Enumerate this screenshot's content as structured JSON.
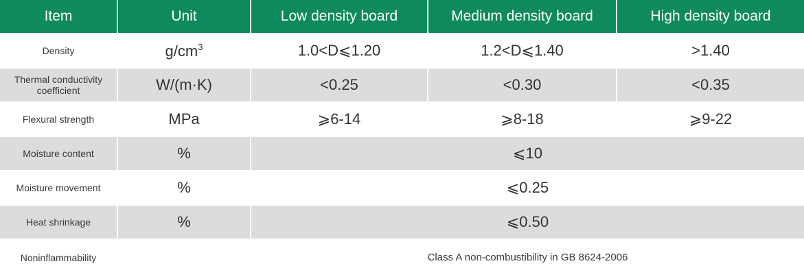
{
  "header": {
    "item": "Item",
    "unit": "Unit",
    "low": "Low density board",
    "medium": "Medium density board",
    "high": "High density board"
  },
  "rows": [
    {
      "item": "Density",
      "unit_base": "g/cm",
      "unit_sup": "3",
      "low": "1.0<D⩽1.20",
      "medium": "1.2<D⩽1.40",
      "high": ">1.40"
    },
    {
      "item_line1": "Thermal conductivity",
      "item_line2": "coefficient",
      "unit": "W/(m·K)",
      "low": "<0.25",
      "medium": "<0.30",
      "high": "<0.35"
    },
    {
      "item": "Flexural strength",
      "unit": "MPa",
      "low": "⩾6-14",
      "medium": "⩾8-18",
      "high": "⩾9-22"
    },
    {
      "item": "Moisture content",
      "unit": "%",
      "value": "⩽10"
    },
    {
      "item": "Moisture movement",
      "unit": "%",
      "value": "⩽0.25"
    },
    {
      "item": "Heat shrinkage",
      "unit": "%",
      "value": "⩽0.50"
    },
    {
      "item": "Noninflammability",
      "unit": "",
      "value": "Class A non-combustibility in GB 8624-2006"
    }
  ],
  "colors": {
    "header_bg": "#0e8a5c",
    "header_text": "#ffffff",
    "row_shade": "#dcdcdc",
    "row_plain": "#ffffff",
    "text": "#333333"
  }
}
